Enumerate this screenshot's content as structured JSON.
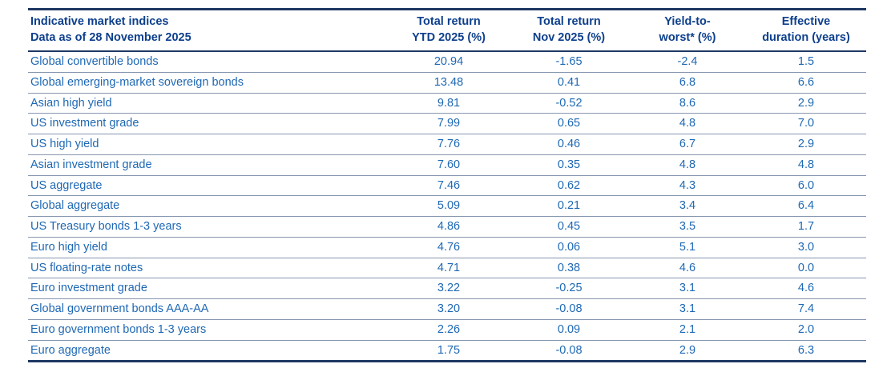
{
  "colors": {
    "border_dark": "#1f3864",
    "header_text": "#0d3f8c",
    "body_text": "#1e68b4",
    "row_separator": "#8796b0",
    "background": "#ffffff"
  },
  "table": {
    "title_line1": "Indicative market indices",
    "title_line2": "Data as of 28 November 2025",
    "columns": [
      {
        "label_line1": "Total return",
        "label_line2": "YTD 2025 (%)"
      },
      {
        "label_line1": "Total return",
        "label_line2": "Nov 2025 (%)"
      },
      {
        "label_line1": "Yield-to-",
        "label_line2": "worst* (%)"
      },
      {
        "label_line1": "Effective",
        "label_line2": "duration (years)"
      }
    ],
    "rows": [
      {
        "name": "Global convertible bonds",
        "values": [
          "20.94",
          "-1.65",
          "-2.4",
          "1.5"
        ]
      },
      {
        "name": "Global emerging-market sovereign bonds",
        "values": [
          "13.48",
          "0.41",
          "6.8",
          "6.6"
        ]
      },
      {
        "name": "Asian high yield",
        "values": [
          "9.81",
          "-0.52",
          "8.6",
          "2.9"
        ]
      },
      {
        "name": "US investment grade",
        "values": [
          "7.99",
          "0.65",
          "4.8",
          "7.0"
        ]
      },
      {
        "name": "US high yield",
        "values": [
          "7.76",
          "0.46",
          "6.7",
          "2.9"
        ]
      },
      {
        "name": "Asian investment grade",
        "values": [
          "7.60",
          "0.35",
          "4.8",
          "4.8"
        ]
      },
      {
        "name": "US aggregate",
        "values": [
          "7.46",
          "0.62",
          "4.3",
          "6.0"
        ]
      },
      {
        "name": "Global aggregate",
        "values": [
          "5.09",
          "0.21",
          "3.4",
          "6.4"
        ]
      },
      {
        "name": "US Treasury bonds 1-3 years",
        "values": [
          "4.86",
          "0.45",
          "3.5",
          "1.7"
        ]
      },
      {
        "name": "Euro high yield",
        "values": [
          "4.76",
          "0.06",
          "5.1",
          "3.0"
        ]
      },
      {
        "name": "US floating-rate notes",
        "values": [
          "4.71",
          "0.38",
          "4.6",
          "0.0"
        ]
      },
      {
        "name": "Euro investment grade",
        "values": [
          "3.22",
          "-0.25",
          "3.1",
          "4.6"
        ]
      },
      {
        "name": "Global government bonds AAA-AA",
        "values": [
          "3.20",
          "-0.08",
          "3.1",
          "7.4"
        ]
      },
      {
        "name": "Euro government bonds 1-3 years",
        "values": [
          "2.26",
          "0.09",
          "2.1",
          "2.0"
        ]
      },
      {
        "name": "Euro aggregate",
        "values": [
          "1.75",
          "-0.08",
          "2.9",
          "6.3"
        ]
      }
    ]
  }
}
